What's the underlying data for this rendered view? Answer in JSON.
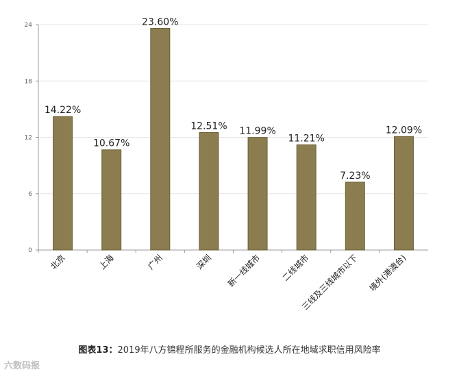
{
  "chart_data": {
    "type": "bar",
    "categories": [
      "北京",
      "上海",
      "广州",
      "深圳",
      "新一线城市",
      "二线城市",
      "三线及三线城市以下",
      "境外(港澳台)"
    ],
    "values": [
      14.22,
      10.67,
      23.6,
      12.51,
      11.99,
      11.21,
      7.23,
      12.09
    ],
    "data_labels": [
      "14.22%",
      "10.67%",
      "23.60%",
      "12.51%",
      "11.99%",
      "11.21%",
      "7.23%",
      "12.09%"
    ],
    "yticks": [
      0,
      6,
      12,
      18,
      24
    ],
    "ylim": [
      0,
      24
    ],
    "grid": true,
    "legend": "none",
    "bar_color": "#8b7d4f",
    "bar_edge_color": "#6b5f38",
    "title": "",
    "xlabel": "",
    "ylabel": ""
  },
  "caption": {
    "lead": "图表13：",
    "text": "2019年八方锦程所服务的金融机构候选人所在地域求职信用风险率"
  },
  "footer": {
    "logo_text": "六数码报"
  }
}
